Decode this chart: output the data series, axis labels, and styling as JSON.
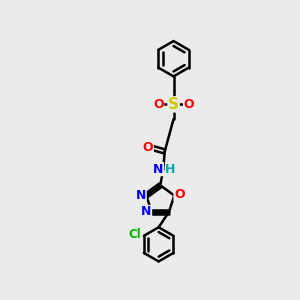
{
  "bg_color": "#ebebeb",
  "bond_color": "#000000",
  "bond_width": 1.8,
  "atom_colors": {
    "O": "#ff0000",
    "N": "#0000ff",
    "S": "#cccc00",
    "Cl": "#00bb00",
    "C": "#000000",
    "H": "#00aaaa"
  },
  "font_size": 9,
  "fig_size": [
    3.0,
    3.0
  ],
  "dpi": 100
}
